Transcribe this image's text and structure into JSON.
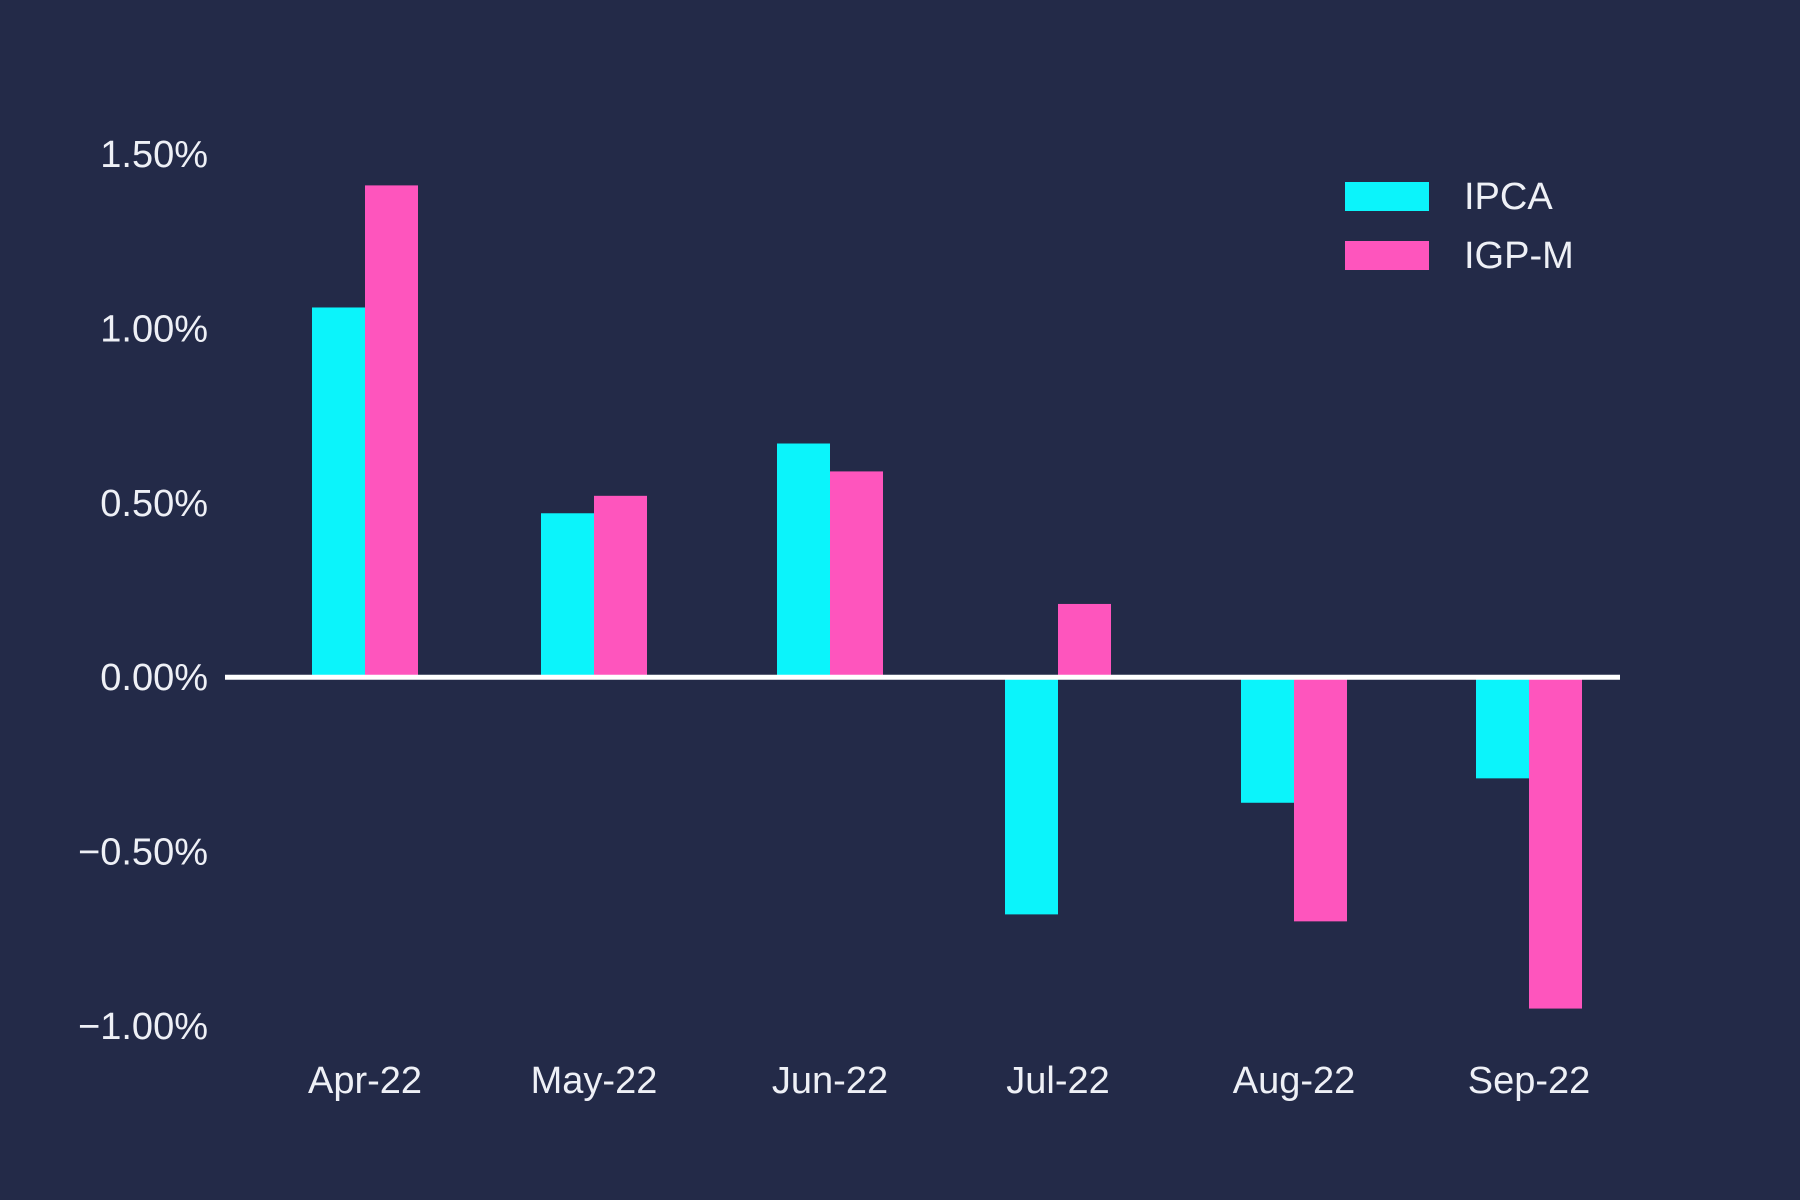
{
  "chart_data": {
    "type": "bar",
    "title": "",
    "xlabel": "",
    "ylabel": "",
    "categories": [
      "Apr-22",
      "May-22",
      "Jun-22",
      "Jul-22",
      "Aug-22",
      "Sep-22"
    ],
    "series": [
      {
        "name": "IPCA",
        "color": "#0bf4fb",
        "values": [
          1.06,
          0.47,
          0.67,
          -0.68,
          -0.36,
          -0.29
        ]
      },
      {
        "name": "IGP-M",
        "color": "#fe55bd",
        "values": [
          1.41,
          0.52,
          0.59,
          0.21,
          -0.7,
          -0.95
        ]
      }
    ],
    "ylim": [
      -1.0,
      1.5
    ],
    "yticks": [
      {
        "value": 1.5,
        "label": "1.50%"
      },
      {
        "value": 1.0,
        "label": "1.00%"
      },
      {
        "value": 0.5,
        "label": "0.50%"
      },
      {
        "value": 0.0,
        "label": "0.00%"
      },
      {
        "value": -0.5,
        "label": "−0.50%"
      },
      {
        "value": -1.0,
        "label": "−1.00%"
      }
    ],
    "grid": false,
    "zero_line": true,
    "legend_position": "top-right",
    "background_color": "#232a48",
    "text_color": "#eef0f6",
    "zero_line_color": "#ffffff"
  }
}
